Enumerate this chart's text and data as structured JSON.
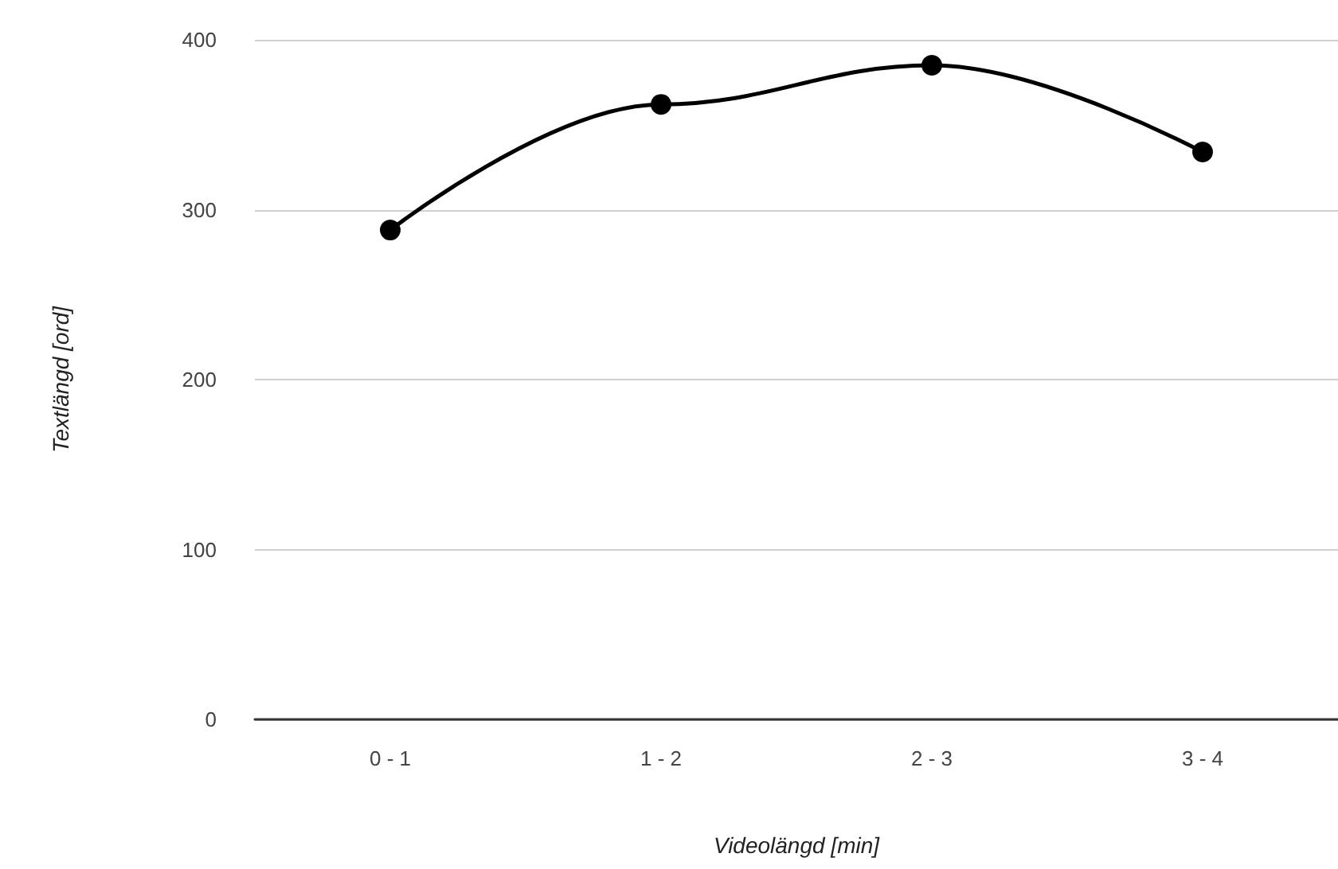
{
  "chart_data": {
    "type": "line",
    "xlabel": "Videolängd [min]",
    "ylabel": "Textlängd [ord]",
    "categories": [
      "0 - 1",
      "1 - 2",
      "2 - 3",
      "3 - 4"
    ],
    "series": [
      {
        "color": "#000000",
        "values": [
          288,
          362,
          385,
          334
        ]
      }
    ],
    "ylim": [
      0,
      400
    ],
    "yticks": [
      0,
      100,
      200,
      300,
      400
    ],
    "grid": "y",
    "marker": "circle",
    "line_style": "solid"
  }
}
